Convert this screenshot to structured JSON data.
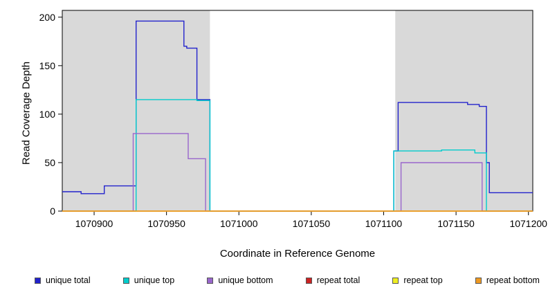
{
  "chart_data": {
    "type": "line",
    "title": "",
    "xlabel": "Coordinate in Reference Genome",
    "ylabel": "Read Coverage Depth",
    "xlim": [
      1070878,
      1071203
    ],
    "ylim": [
      0,
      207
    ],
    "x_ticks": [
      1070900,
      1070950,
      1071000,
      1071050,
      1071100,
      1071150,
      1071200
    ],
    "y_ticks": [
      0,
      50,
      100,
      150,
      200
    ],
    "grid": false,
    "legend_position": "bottom",
    "background_regions": {
      "color": "#d9d9d9",
      "ranges": [
        [
          1070878,
          1070980
        ],
        [
          1071108,
          1071203
        ]
      ]
    },
    "series": [
      {
        "name": "unique total",
        "color": "#2222cc",
        "points": [
          [
            1070878,
            20
          ],
          [
            1070891,
            20
          ],
          [
            1070891,
            18
          ],
          [
            1070907,
            18
          ],
          [
            1070907,
            26
          ],
          [
            1070929,
            26
          ],
          [
            1070929,
            196
          ],
          [
            1070962,
            196
          ],
          [
            1070962,
            170
          ],
          [
            1070964,
            170
          ],
          [
            1070964,
            168
          ],
          [
            1070971,
            168
          ],
          [
            1070971,
            115
          ],
          [
            1070980,
            115
          ],
          [
            1070980,
            0
          ],
          [
            1071107,
            0
          ],
          [
            1071107,
            62
          ],
          [
            1071110,
            62
          ],
          [
            1071110,
            112
          ],
          [
            1071158,
            112
          ],
          [
            1071158,
            110
          ],
          [
            1071166,
            110
          ],
          [
            1071166,
            108
          ],
          [
            1071171,
            108
          ],
          [
            1071171,
            50
          ],
          [
            1071173,
            50
          ],
          [
            1071173,
            19
          ],
          [
            1071203,
            19
          ]
        ]
      },
      {
        "name": "unique top",
        "color": "#00cccc",
        "points": [
          [
            1070878,
            0
          ],
          [
            1070929,
            0
          ],
          [
            1070929,
            115
          ],
          [
            1070971,
            115
          ],
          [
            1070971,
            114
          ],
          [
            1070980,
            114
          ],
          [
            1070980,
            0
          ],
          [
            1071107,
            0
          ],
          [
            1071107,
            62
          ],
          [
            1071140,
            62
          ],
          [
            1071140,
            63
          ],
          [
            1071163,
            63
          ],
          [
            1071163,
            60
          ],
          [
            1071171,
            60
          ],
          [
            1071171,
            0
          ],
          [
            1071203,
            0
          ]
        ]
      },
      {
        "name": "unique bottom",
        "color": "#9966cc",
        "points": [
          [
            1070878,
            0
          ],
          [
            1070927,
            0
          ],
          [
            1070927,
            80
          ],
          [
            1070965,
            80
          ],
          [
            1070965,
            54
          ],
          [
            1070977,
            54
          ],
          [
            1070977,
            0
          ],
          [
            1071112,
            0
          ],
          [
            1071112,
            50
          ],
          [
            1071168,
            50
          ],
          [
            1071168,
            0
          ],
          [
            1071203,
            0
          ]
        ]
      },
      {
        "name": "repeat total",
        "color": "#cc2222",
        "points": [
          [
            1070878,
            0
          ],
          [
            1071203,
            0
          ]
        ]
      },
      {
        "name": "repeat top",
        "color": "#eeee22",
        "points": [
          [
            1070878,
            0
          ],
          [
            1071203,
            0
          ]
        ]
      },
      {
        "name": "repeat bottom",
        "color": "#ee9922",
        "points": [
          [
            1070878,
            0
          ],
          [
            1071203,
            0
          ]
        ]
      }
    ]
  }
}
